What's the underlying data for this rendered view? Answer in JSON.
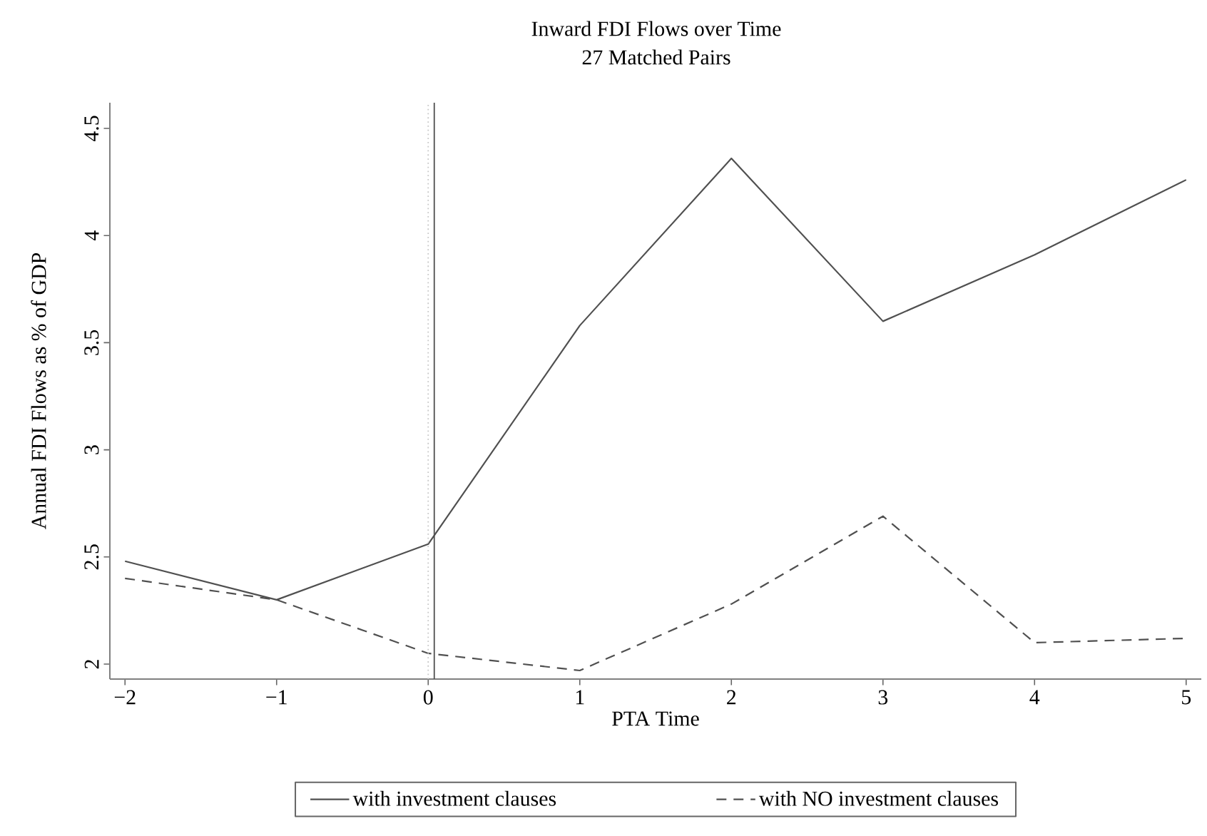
{
  "chart_data": {
    "type": "line",
    "title": "Inward FDI Flows over Time",
    "subtitle": "27 Matched Pairs",
    "xlabel": "PTA Time",
    "ylabel": "Annual FDI Flows as % of GDP",
    "x": [
      -2,
      -1,
      0,
      1,
      2,
      3,
      4,
      5
    ],
    "series": [
      {
        "name": "with investment clauses",
        "color": "#505050",
        "line_style": "solid",
        "values": [
          2.48,
          2.3,
          2.56,
          3.58,
          4.36,
          3.6,
          3.91,
          4.26
        ]
      },
      {
        "name": "with NO investment clauses",
        "color": "#505050",
        "line_style": "dashed",
        "values": [
          2.4,
          2.3,
          2.05,
          1.97,
          2.28,
          2.69,
          2.1,
          2.12
        ]
      }
    ],
    "ref_lines": [
      {
        "axis": "x",
        "value": 0,
        "color": "#c8c8c8",
        "line_style": "dotted"
      },
      {
        "axis": "x",
        "value": 0.04,
        "color": "#505050",
        "line_style": "solid"
      }
    ],
    "xlim": [
      -2.1,
      5.1
    ],
    "ylim": [
      1.93,
      4.62
    ],
    "xticks": [
      {
        "value": -2,
        "label": "−2"
      },
      {
        "value": -1,
        "label": "−1"
      },
      0,
      1,
      2,
      3,
      4,
      5
    ],
    "yticks": [
      2,
      2.5,
      3,
      3.5,
      4,
      4.5
    ],
    "grid": false,
    "legend": "bottom",
    "marker": "none"
  }
}
